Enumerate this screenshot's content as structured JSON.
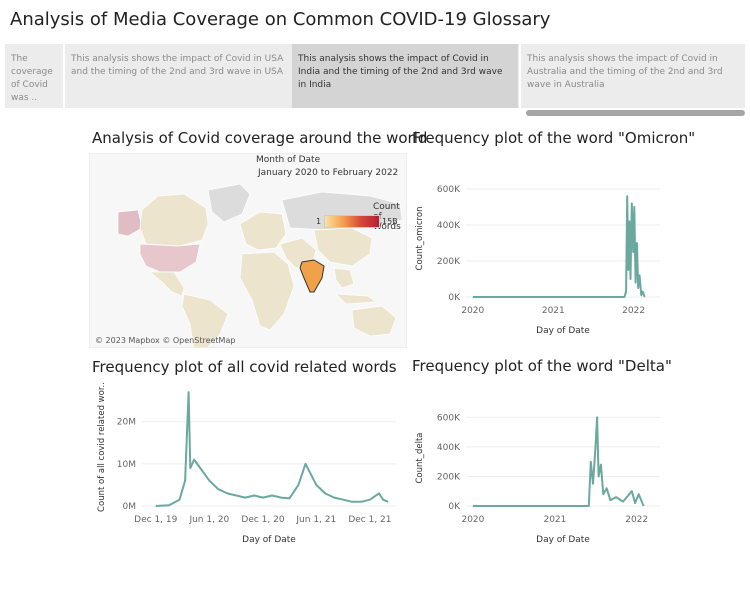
{
  "title": "Analysis of Media Coverage on Common COVID-19 Glossary",
  "story_points": [
    {
      "text": "The coverage of Covid was .."
    },
    {
      "text": "This analysis shows the impact of Covid in USA and the timing of the 2nd and 3rd wave in USA"
    },
    {
      "text": "This analysis shows the impact of Covid in India and the timing of the 2nd and 3rd wave in India"
    },
    {
      "text": "This analysis shows the impact of Covid in Australia and the timing of the 2nd and 3rd wave in Australia"
    }
  ],
  "map": {
    "title": "Analysis of Covid coverage around the world",
    "filter_label": "Month of Date",
    "filter_value": "January 2020 to February 2022",
    "legend_title": "Count of Words",
    "legend_min": "1",
    "legend_max": "15B",
    "credit": "© 2023 Mapbox © OpenStreetMap",
    "colors": {
      "land": "#ece4cc",
      "highlight": "#f0a14a",
      "usa": "#e8c7cc",
      "alaska": "#e0bcc4",
      "nodata": "#dcdcdc"
    }
  },
  "chart_data": [
    {
      "id": "omicron",
      "type": "line",
      "title": "Frequency plot of the word \"Omicron\"",
      "xlabel": "Day of Date",
      "ylabel": "Count_omicron",
      "x_ticks": [
        "2020",
        "2021",
        "2022"
      ],
      "y_ticks": [
        "0K",
        "200K",
        "400K",
        "600K"
      ],
      "ylim": [
        0,
        650000
      ],
      "xlim": [
        "2019-12-01",
        "2022-05-01"
      ],
      "color": "#6ba89f",
      "points": [
        [
          "2020-01-01",
          0
        ],
        [
          "2021-11-20",
          0
        ],
        [
          "2021-11-28",
          30000
        ],
        [
          "2021-12-03",
          560000
        ],
        [
          "2021-12-08",
          150000
        ],
        [
          "2021-12-13",
          420000
        ],
        [
          "2021-12-18",
          100000
        ],
        [
          "2021-12-24",
          520000
        ],
        [
          "2021-12-30",
          250000
        ],
        [
          "2022-01-04",
          500000
        ],
        [
          "2022-01-10",
          80000
        ],
        [
          "2022-01-16",
          300000
        ],
        [
          "2022-01-22",
          50000
        ],
        [
          "2022-01-28",
          120000
        ],
        [
          "2022-02-05",
          10000
        ],
        [
          "2022-02-12",
          30000
        ],
        [
          "2022-02-20",
          0
        ]
      ]
    },
    {
      "id": "all",
      "type": "line",
      "title": "Frequency plot of all covid related words",
      "xlabel": "Day of Date",
      "ylabel": "Count of all covid related wor..",
      "x_ticks": [
        "Dec 1, 19",
        "Jun 1, 20",
        "Dec 1, 20",
        "Jun 1, 21",
        "Dec 1, 21"
      ],
      "y_ticks": [
        "0M",
        "10M",
        "20M"
      ],
      "ylim": [
        0,
        28000000
      ],
      "xlim": [
        "2019-10-15",
        "2022-02-28"
      ],
      "color": "#6ba89f",
      "points": [
        [
          "2019-12-01",
          0
        ],
        [
          "2020-01-15",
          200000
        ],
        [
          "2020-02-20",
          1500000
        ],
        [
          "2020-03-10",
          6000000
        ],
        [
          "2020-03-22",
          27000000
        ],
        [
          "2020-03-28",
          9000000
        ],
        [
          "2020-04-10",
          11000000
        ],
        [
          "2020-05-01",
          9000000
        ],
        [
          "2020-06-01",
          6000000
        ],
        [
          "2020-07-01",
          4000000
        ],
        [
          "2020-08-01",
          3000000
        ],
        [
          "2020-09-01",
          2500000
        ],
        [
          "2020-10-01",
          2000000
        ],
        [
          "2020-11-01",
          2500000
        ],
        [
          "2020-12-01",
          2000000
        ],
        [
          "2021-01-01",
          2500000
        ],
        [
          "2021-02-01",
          2000000
        ],
        [
          "2021-03-01",
          1800000
        ],
        [
          "2021-04-01",
          5000000
        ],
        [
          "2021-04-25",
          10000000
        ],
        [
          "2021-05-10",
          8000000
        ],
        [
          "2021-06-01",
          5000000
        ],
        [
          "2021-07-01",
          3000000
        ],
        [
          "2021-08-01",
          2000000
        ],
        [
          "2021-09-01",
          1500000
        ],
        [
          "2021-10-01",
          1000000
        ],
        [
          "2021-11-01",
          1000000
        ],
        [
          "2021-12-01",
          1500000
        ],
        [
          "2022-01-01",
          3000000
        ],
        [
          "2022-01-15",
          1500000
        ],
        [
          "2022-02-01",
          1000000
        ]
      ]
    },
    {
      "id": "delta",
      "type": "line",
      "title": "Frequency plot of the word \"Delta\"",
      "xlabel": "Day of Date",
      "ylabel": "Count_delta",
      "x_ticks": [
        "2020",
        "2021",
        "2022"
      ],
      "y_ticks": [
        "0K",
        "200K",
        "400K",
        "600K"
      ],
      "ylim": [
        0,
        650000
      ],
      "xlim": [
        "2019-12-01",
        "2022-04-15"
      ],
      "color": "#6ba89f",
      "points": [
        [
          "2020-01-01",
          0
        ],
        [
          "2021-06-01",
          0
        ],
        [
          "2021-06-10",
          300000
        ],
        [
          "2021-06-20",
          150000
        ],
        [
          "2021-07-01",
          400000
        ],
        [
          "2021-07-08",
          600000
        ],
        [
          "2021-07-15",
          200000
        ],
        [
          "2021-07-25",
          280000
        ],
        [
          "2021-08-05",
          80000
        ],
        [
          "2021-08-20",
          120000
        ],
        [
          "2021-09-05",
          40000
        ],
        [
          "2021-10-01",
          60000
        ],
        [
          "2021-11-01",
          30000
        ],
        [
          "2021-12-10",
          100000
        ],
        [
          "2021-12-25",
          20000
        ],
        [
          "2022-01-10",
          80000
        ],
        [
          "2022-02-01",
          0
        ]
      ]
    }
  ]
}
